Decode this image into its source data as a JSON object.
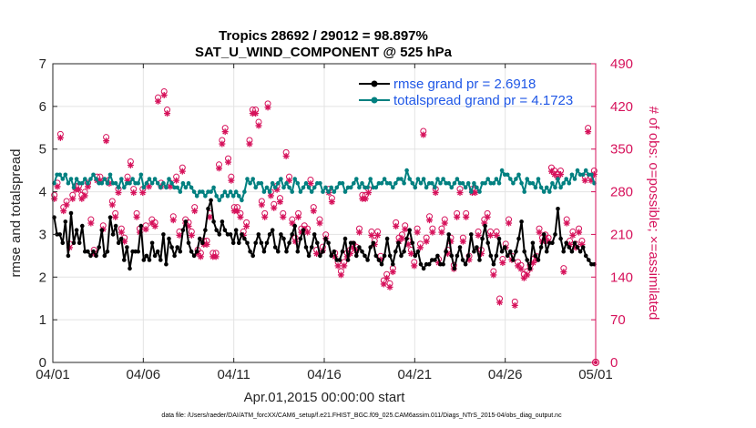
{
  "chart_data": {
    "type": "line",
    "title": "Tropics 28692 / 29012 = 98.897%",
    "subtitle": "SAT_U_WIND_COMPONENT @ 525 hPa",
    "xlabel": "Apr.01,2015 00:00:00 start",
    "ylabel": "rmse and totalspread",
    "ylabel_right": "# of obs: o=possible; ×=assimilated",
    "footnote": "data file: /Users/raeder/DAI/ATM_forcXX/CAM6_setup/f.e21.FHIST_BGC.f09_025.CAM6assim.011/Diags_NTrS_2015-04/obs_diag_output.nc",
    "xlim": [
      0,
      30
    ],
    "ylim": [
      0,
      7
    ],
    "ylim_right": [
      0,
      490
    ],
    "x_tick_labels": [
      "04/01",
      "04/06",
      "04/11",
      "04/16",
      "04/21",
      "04/26",
      "05/01"
    ],
    "y_tick_labels": [
      "0",
      "1",
      "2",
      "3",
      "4",
      "5",
      "6",
      "7"
    ],
    "y_right_tick_labels": [
      "0",
      "70",
      "140",
      "210",
      "280",
      "350",
      "420",
      "490"
    ],
    "legend": [
      "rmse grand pr = 2.6918",
      "totalspread grand pr = 4.1723"
    ],
    "colors": {
      "rmse": "#000000",
      "spread": "#008080",
      "obs": "#d6125b",
      "legend_text": "#1f57e6"
    },
    "series": [
      {
        "name": "rmse",
        "values": [
          3.4,
          3.0,
          3.0,
          2.8,
          3.3,
          2.5,
          3.5,
          2.8,
          3.1,
          2.8,
          3.2,
          2.6,
          2.6,
          2.5,
          2.6,
          2.5,
          2.7,
          3.1,
          2.5,
          2.6,
          3.4,
          3.0,
          3.2,
          2.8,
          2.9,
          2.4,
          2.7,
          2.2,
          2.6,
          2.6,
          2.6,
          3.2,
          2.4,
          2.5,
          2.4,
          2.8,
          2.5,
          2.6,
          2.4,
          3.0,
          2.3,
          2.9,
          2.7,
          2.5,
          2.7,
          2.6,
          3.1,
          3.3,
          2.8,
          2.6,
          2.5,
          2.6,
          2.9,
          2.8,
          3.1,
          3.6,
          3.8,
          3.3,
          3.1,
          3.0,
          3.3,
          3.1,
          3.0,
          3.0,
          2.8,
          3.1,
          2.8,
          3.0,
          2.9,
          2.8,
          2.6,
          2.5,
          2.8,
          3.0,
          2.8,
          2.6,
          2.8,
          3.0,
          3.1,
          2.7,
          2.6,
          3.0,
          2.9,
          2.6,
          2.8,
          3.0,
          3.2,
          2.6,
          2.9,
          3.1,
          2.7,
          2.5,
          2.7,
          3.0,
          2.8,
          2.5,
          2.6,
          2.9,
          2.8,
          2.5,
          2.6,
          2.4,
          2.4,
          2.6,
          2.9,
          2.4,
          2.8,
          2.8,
          2.5,
          2.7,
          2.6,
          2.5,
          2.4,
          2.7,
          2.8,
          2.5,
          2.4,
          2.3,
          2.5,
          2.9,
          2.5,
          2.3,
          2.6,
          2.8,
          2.5,
          2.6,
          2.9,
          3.1,
          2.8,
          2.5,
          2.6,
          2.3,
          2.2,
          2.3,
          2.3,
          2.4,
          2.4,
          2.5,
          2.3,
          2.3,
          2.6,
          3.0,
          2.5,
          2.2,
          2.5,
          2.7,
          2.4,
          2.3,
          2.5,
          3.0,
          2.6,
          2.7,
          2.4,
          2.9,
          3.2,
          2.8,
          2.5,
          2.3,
          2.5,
          2.9,
          2.6,
          2.7,
          2.5,
          2.6,
          2.4,
          2.6,
          2.9,
          3.3,
          2.6,
          2.4,
          2.2,
          2.8,
          2.5,
          2.4,
          2.7,
          3.0,
          2.6,
          2.8,
          2.8,
          3.0,
          3.6,
          2.9,
          2.6,
          2.8,
          2.7,
          2.6,
          2.8,
          2.7,
          2.6,
          2.7,
          2.5,
          2.4,
          2.3,
          2.3
        ]
      },
      {
        "name": "totalspread",
        "values": [
          4.2,
          4.4,
          4.4,
          4.3,
          4.4,
          4.2,
          4.3,
          4.1,
          4.3,
          4.2,
          4.2,
          4.3,
          4.2,
          4.3,
          4.4,
          4.3,
          4.2,
          4.2,
          4.3,
          4.2,
          4.4,
          4.2,
          4.2,
          4.1,
          4.3,
          4.1,
          4.2,
          4.2,
          4.3,
          4.2,
          4.2,
          4.4,
          4.1,
          4.2,
          4.3,
          4.2,
          4.3,
          4.2,
          4.1,
          4.2,
          4.1,
          4.3,
          4.2,
          4.1,
          4.1,
          4.0,
          4.2,
          4.1,
          4.2,
          4.1,
          4.0,
          3.9,
          4.0,
          4.0,
          3.9,
          4.0,
          4.0,
          4.1,
          3.9,
          3.8,
          3.9,
          4.0,
          3.9,
          4.0,
          3.9,
          4.0,
          3.9,
          3.8,
          4.0,
          4.3,
          4.2,
          4.3,
          4.1,
          4.2,
          4.2,
          4.0,
          4.1,
          4.0,
          4.2,
          4.1,
          4.2,
          4.3,
          4.1,
          4.2,
          4.1,
          4.0,
          4.3,
          4.2,
          4.0,
          4.1,
          4.2,
          4.1,
          4.0,
          4.1,
          4.2,
          4.2,
          4.0,
          4.1,
          4.0,
          4.1,
          4.0,
          4.1,
          4.2,
          4.2,
          4.0,
          4.1,
          4.1,
          4.2,
          4.3,
          4.1,
          4.2,
          4.1,
          4.1,
          4.3,
          4.1,
          4.1,
          4.2,
          4.2,
          4.3,
          4.2,
          4.2,
          4.1,
          4.2,
          4.3,
          4.3,
          4.2,
          4.5,
          4.3,
          4.2,
          4.1,
          4.3,
          4.2,
          4.3,
          4.1,
          4.2,
          4.2,
          4.1,
          4.3,
          4.2,
          4.3,
          4.2,
          4.2,
          4.1,
          4.2,
          4.3,
          4.2,
          4.2,
          4.1,
          4.2,
          4.0,
          4.2,
          4.1,
          4.0,
          4.2,
          4.2,
          4.3,
          4.2,
          4.2,
          4.3,
          4.2,
          4.5,
          4.4,
          4.4,
          4.3,
          4.2,
          4.3,
          4.4,
          4.2,
          4.0,
          4.3,
          4.2,
          4.2,
          4.1,
          4.3,
          4.1,
          4.0,
          4.1,
          4.0,
          4.2,
          4.1,
          4.3,
          4.1,
          4.2,
          4.3,
          4.2,
          4.4,
          4.3,
          4.5,
          4.4,
          4.4,
          4.5,
          4.4,
          4.4,
          4.2
        ]
      }
    ],
    "obs_counts": [
      270,
      290,
      370,
      250,
      260,
      190,
      270,
      285,
      285,
      270,
      275,
      290,
      230,
      180,
      300,
      300,
      220,
      365,
      295,
      260,
      240,
      280,
      215,
      200,
      300,
      325,
      280,
      240,
      215,
      280,
      220,
      290,
      230,
      225,
      430,
      290,
      440,
      410,
      290,
      235,
      300,
      210,
      315,
      230,
      225,
      210,
      250,
      180,
      175,
      195,
      195,
      240,
      175,
      175,
      320,
      360,
      380,
      330,
      300,
      250,
      250,
      240,
      210,
      225,
      360,
      410,
      410,
      390,
      260,
      240,
      420,
      275,
      255,
      285,
      265,
      240,
      340,
      300,
      230,
      200,
      240,
      215,
      220,
      215,
      295,
      250,
      180,
      230,
      185,
      205,
      280,
      265,
      175,
      160,
      145,
      160,
      175,
      180,
      190,
      185,
      215,
      270,
      270,
      280,
      210,
      195,
      210,
      170,
      130,
      140,
      125,
      150,
      225,
      200,
      205,
      220,
      195,
      180,
      160,
      215,
      190,
      375,
      200,
      235,
      215,
      280,
      165,
      215,
      230,
      180,
      200,
      155,
      240,
      280,
      200,
      240,
      170,
      280,
      280,
      210,
      180,
      230,
      240,
      210,
      145,
      210,
      100,
      165,
      190,
      230,
      170,
      95,
      160,
      155,
      140,
      145,
      155,
      165,
      170,
      215,
      200,
      205,
      200,
      315,
      310,
      305,
      310,
      150,
      230,
      195,
      210,
      190,
      215,
      195,
      300,
      380,
      300,
      310
    ]
  }
}
